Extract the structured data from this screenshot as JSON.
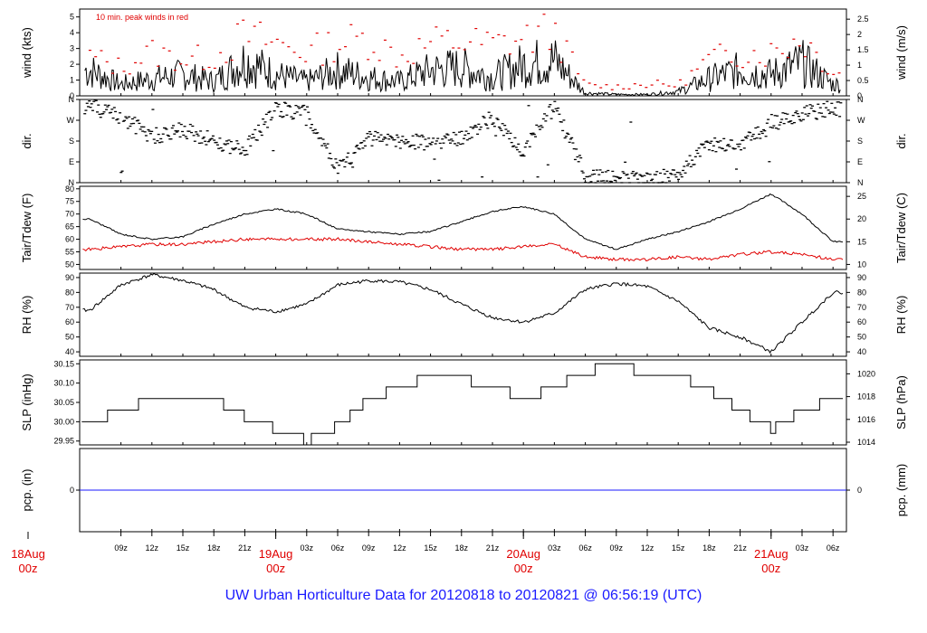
{
  "title": "UW Urban Horticulture Data for 20120818  to  20120821 @ 06:56:19  (UTC)",
  "colors": {
    "primary": "#000000",
    "peak": "#e00000",
    "dewpoint": "#e00000",
    "precip": "#1a1aff",
    "title": "#1a1aff"
  },
  "time_axis": {
    "hour_labels": [
      "09z",
      "12z",
      "15z",
      "18z",
      "21z",
      "03z",
      "06z",
      "09z",
      "12z",
      "15z",
      "18z",
      "21z",
      "03z",
      "06z",
      "09z",
      "12z",
      "15z",
      "18z",
      "21z",
      "03z",
      "06z"
    ],
    "day_labels": [
      {
        "date": "18Aug",
        "hour": "00z"
      },
      {
        "date": "19Aug",
        "hour": "00z"
      },
      {
        "date": "20Aug",
        "hour": "00z"
      },
      {
        "date": "21Aug",
        "hour": "00z"
      }
    ]
  },
  "chart_data": [
    {
      "type": "line",
      "ylabel": "wind (kts)",
      "ylabel_right": "wind (m/s)",
      "annotation": "10 min. peak winds in red",
      "ylim": [
        0,
        5.5
      ],
      "yticks": [
        "0",
        "1",
        "2",
        "3",
        "4",
        "5"
      ],
      "yticks_right": [
        "0",
        "0.5",
        "1",
        "1.5",
        "2",
        "2.5"
      ],
      "series": [
        {
          "x": [
            "08-18 06z",
            "08-18 09z",
            "08-18 12z",
            "08-18 15z",
            "08-18 18z",
            "08-18 21z",
            "08-19 00z",
            "08-19 03z",
            "08-19 06z",
            "08-19 09z",
            "08-19 12z",
            "08-19 15z",
            "08-19 18z",
            "08-19 21z",
            "08-20 00z",
            "08-20 03z",
            "08-20 06z",
            "08-20 09z",
            "08-20 12z",
            "08-20 15z",
            "08-20 18z",
            "08-20 21z",
            "08-21 00z",
            "08-21 03z",
            "08-21 06z"
          ],
          "values": [
            1.8,
            0.8,
            1.2,
            1.5,
            1.0,
            2.5,
            1.5,
            1.0,
            1.8,
            1.3,
            1.0,
            1.8,
            2.0,
            1.3,
            2.2,
            2.5,
            0.2,
            0.1,
            0.1,
            0.3,
            1.2,
            1.8,
            1.5,
            2.3,
            0.8
          ]
        },
        {
          "x": [
            "08-18 06z",
            "08-18 09z",
            "08-18 12z",
            "08-18 15z",
            "08-18 18z",
            "08-18 21z",
            "08-19 00z",
            "08-19 03z",
            "08-19 06z",
            "08-19 09z",
            "08-19 12z",
            "08-19 15z",
            "08-19 18z",
            "08-19 21z",
            "08-20 00z",
            "08-20 03z",
            "08-20 06z",
            "08-20 09z",
            "08-20 12z",
            "08-20 15z",
            "08-20 18z",
            "08-20 21z",
            "08-21 00z",
            "08-21 03z",
            "08-21 06z"
          ],
          "values": [
            2.6,
            1.9,
            2.9,
            2.4,
            2.6,
            4.0,
            3.5,
            2.9,
            3.5,
            3.8,
            2.6,
            3.5,
            3.6,
            3.4,
            3.8,
            4.3,
            0.7,
            0.6,
            0.8,
            0.7,
            2.4,
            2.9,
            2.9,
            3.9,
            1.6
          ]
        }
      ]
    },
    {
      "type": "scatter",
      "ylabel": "dir.",
      "ylabel_right": "dir.",
      "yticks": [
        "N",
        "E",
        "S",
        "W",
        "N"
      ],
      "ylim": [
        0,
        360
      ],
      "x": [
        "08-18 06z",
        "08-18 09z",
        "08-18 12z",
        "08-18 15z",
        "08-18 18z",
        "08-18 21z",
        "08-19 00z",
        "08-19 03z",
        "08-19 06z",
        "08-19 09z",
        "08-19 12z",
        "08-19 15z",
        "08-19 18z",
        "08-19 21z",
        "08-20 00z",
        "08-20 03z",
        "08-20 06z",
        "08-20 09z",
        "08-20 12z",
        "08-20 15z",
        "08-20 18z",
        "08-20 21z",
        "08-21 00z",
        "08-21 03z",
        "08-21 06z"
      ],
      "values": [
        330,
        290,
        200,
        230,
        180,
        140,
        320,
        300,
        60,
        190,
        180,
        170,
        200,
        280,
        140,
        330,
        30,
        20,
        10,
        40,
        170,
        160,
        250,
        300,
        320
      ]
    },
    {
      "type": "line",
      "ylabel": "Tair/Tdew (F)",
      "ylabel_right": "Tair/Tdew (C)",
      "ylim": [
        48,
        81
      ],
      "yticks": [
        "50",
        "55",
        "60",
        "65",
        "70",
        "75",
        "80"
      ],
      "yticks_right": [
        "10",
        "15",
        "20",
        "25"
      ],
      "series": [
        {
          "x": [
            "08-18 06z",
            "08-18 09z",
            "08-18 12z",
            "08-18 15z",
            "08-18 18z",
            "08-18 21z",
            "08-19 00z",
            "08-19 03z",
            "08-19 06z",
            "08-19 09z",
            "08-19 12z",
            "08-19 15z",
            "08-19 18z",
            "08-19 21z",
            "08-20 00z",
            "08-20 03z",
            "08-20 06z",
            "08-20 09z",
            "08-20 12z",
            "08-20 15z",
            "08-20 18z",
            "08-20 21z",
            "08-21 00z",
            "08-21 03z",
            "08-21 06z"
          ],
          "values": [
            68,
            62,
            60,
            61,
            66,
            70,
            72,
            70,
            64,
            63,
            62,
            63,
            67,
            71,
            73,
            70,
            60,
            56,
            60,
            63,
            67,
            72,
            78,
            70,
            59
          ]
        },
        {
          "x": [
            "08-18 06z",
            "08-18 09z",
            "08-18 12z",
            "08-18 15z",
            "08-18 18z",
            "08-18 21z",
            "08-19 00z",
            "08-19 03z",
            "08-19 06z",
            "08-19 09z",
            "08-19 12z",
            "08-19 15z",
            "08-19 18z",
            "08-19 21z",
            "08-20 00z",
            "08-20 03z",
            "08-20 06z",
            "08-20 09z",
            "08-20 12z",
            "08-20 15z",
            "08-20 18z",
            "08-20 21z",
            "08-21 00z",
            "08-21 03z",
            "08-21 06z"
          ],
          "values": [
            56,
            57,
            58,
            58,
            59,
            60,
            60,
            60,
            60,
            59,
            58,
            57,
            56,
            56,
            57,
            58,
            53,
            52,
            52,
            53,
            52,
            54,
            55,
            54,
            52
          ]
        }
      ]
    },
    {
      "type": "line",
      "ylabel": "RH (%)",
      "ylabel_right": "RH (%)",
      "ylim": [
        37,
        93
      ],
      "yticks": [
        "40",
        "50",
        "60",
        "70",
        "80",
        "90"
      ],
      "series": [
        {
          "x": [
            "08-18 06z",
            "08-18 09z",
            "08-18 12z",
            "08-18 15z",
            "08-18 18z",
            "08-18 21z",
            "08-19 00z",
            "08-19 03z",
            "08-19 06z",
            "08-19 09z",
            "08-19 12z",
            "08-19 15z",
            "08-19 18z",
            "08-19 21z",
            "08-20 00z",
            "08-20 03z",
            "08-20 06z",
            "08-20 09z",
            "08-20 12z",
            "08-20 15z",
            "08-20 18z",
            "08-20 21z",
            "08-21 00z",
            "08-21 03z",
            "08-21 06z"
          ],
          "values": [
            68,
            85,
            92,
            88,
            82,
            70,
            67,
            72,
            85,
            88,
            87,
            82,
            72,
            63,
            60,
            66,
            82,
            86,
            84,
            74,
            56,
            50,
            40,
            60,
            80
          ]
        }
      ]
    },
    {
      "type": "line",
      "ylabel": "SLP (inHg)",
      "ylabel_right": "SLP (hPa)",
      "ylim": [
        29.94,
        30.16
      ],
      "yticks": [
        "29.95",
        "30.00",
        "30.05",
        "30.10",
        "30.15"
      ],
      "yticks_right": [
        "1014",
        "1016",
        "1018",
        "1020"
      ],
      "series": [
        {
          "x": [
            "08-18 06z",
            "08-18 09z",
            "08-18 12z",
            "08-18 15z",
            "08-18 18z",
            "08-18 21z",
            "08-19 00z",
            "08-19 03z",
            "08-19 06z",
            "08-19 09z",
            "08-19 12z",
            "08-19 15z",
            "08-19 18z",
            "08-19 21z",
            "08-20 00z",
            "08-20 03z",
            "08-20 06z",
            "08-20 09z",
            "08-20 12z",
            "08-20 15z",
            "08-20 18z",
            "08-20 21z",
            "08-21 00z",
            "08-21 03z",
            "08-21 06z"
          ],
          "values": [
            30.0,
            30.03,
            30.06,
            30.06,
            30.06,
            30.01,
            29.98,
            29.95,
            29.99,
            30.06,
            30.09,
            30.12,
            30.11,
            30.09,
            30.06,
            30.09,
            30.13,
            30.15,
            30.12,
            30.12,
            30.08,
            30.03,
            29.98,
            30.03,
            30.06
          ]
        }
      ]
    },
    {
      "type": "line",
      "ylabel": "pcp. (in)",
      "ylabel_right": "pcp. (mm)",
      "yticks": [
        "0"
      ],
      "yticks_right": [
        "0"
      ],
      "series": [
        {
          "x": [
            "08-18 06z",
            "08-21 06z"
          ],
          "values": [
            0,
            0
          ]
        }
      ]
    }
  ]
}
